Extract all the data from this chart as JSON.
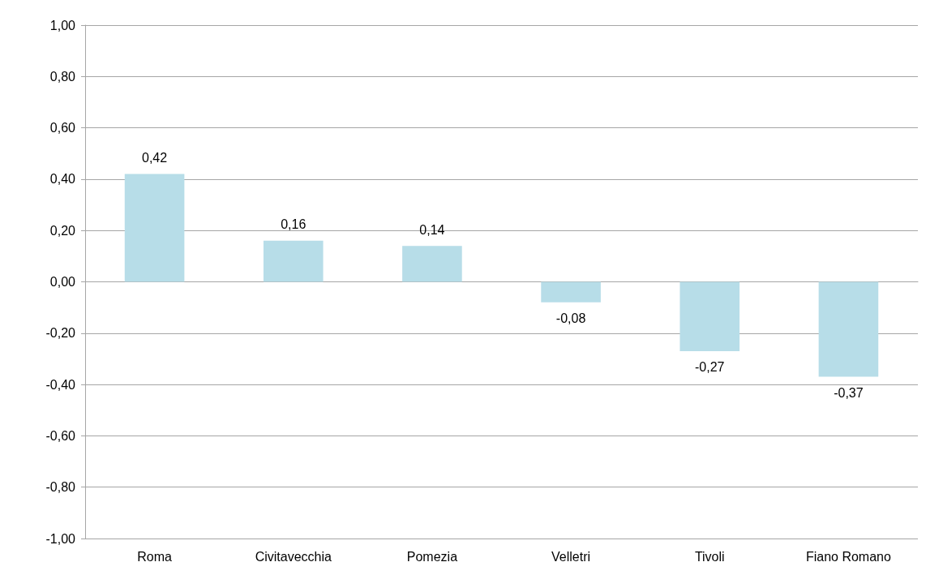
{
  "chart_data": {
    "type": "bar",
    "categories": [
      "Roma",
      "Civitavecchia",
      "Pomezia",
      "Velletri",
      "Tivoli",
      "Fiano Romano"
    ],
    "values": [
      0.42,
      0.16,
      0.14,
      -0.08,
      -0.27,
      -0.37
    ],
    "value_labels": [
      "0,42",
      "0,16",
      "0,14",
      "-0,08",
      "-0,27",
      "-0,37"
    ],
    "color": "#b7dde8",
    "ylim": [
      -1,
      1
    ],
    "yticks": [
      {
        "value": -1,
        "label": "-1,00"
      },
      {
        "value": -0.8,
        "label": "-0,80"
      },
      {
        "value": -0.6,
        "label": "-0,60"
      },
      {
        "value": -0.4,
        "label": "-0,40"
      },
      {
        "value": -0.2,
        "label": "-0,20"
      },
      {
        "value": 0,
        "label": "0,00"
      },
      {
        "value": 0.2,
        "label": "0,20"
      },
      {
        "value": 0.4,
        "label": "0,40"
      },
      {
        "value": 0.6,
        "label": "0,60"
      },
      {
        "value": 0.8,
        "label": "0,80"
      },
      {
        "value": 1,
        "label": "1,00"
      }
    ],
    "grid": "y"
  }
}
